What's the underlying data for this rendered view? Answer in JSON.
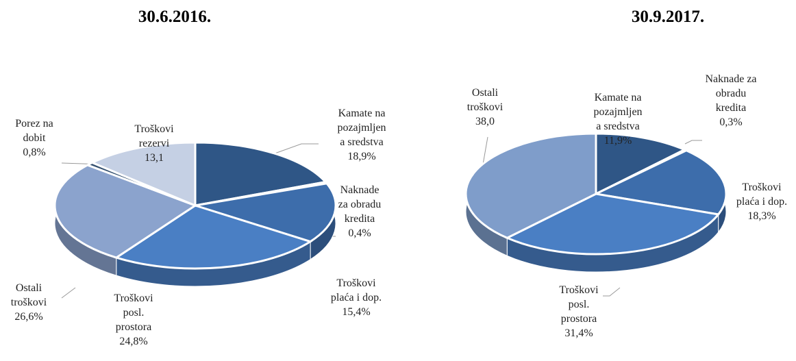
{
  "chart_data": [
    {
      "type": "pie3d",
      "title": "30.6.2016.",
      "categories": [
        "Kamate na\npozajmljen\na sredstva",
        "Naknade\nza obradu\nkredita",
        "Troškovi\nplaća i dop.",
        "Troškovi\nposl.\nprostora",
        "Ostali\ntroškovi",
        "Porez na\ndobit",
        "Troškovi\nrezervi"
      ],
      "values": [
        18.9,
        0.4,
        15.4,
        24.8,
        26.6,
        0.8,
        13.1
      ],
      "value_labels": [
        "18,9%",
        "0,4%",
        "15,4%",
        "24,8%",
        "26,6%",
        "0,8%",
        "13,1"
      ],
      "colors": [
        "#2f5686",
        "#355f94",
        "#3d6dab",
        "#4a7fc4",
        "#8ba3cd",
        "#34506f",
        "#c5d0e4"
      ]
    },
    {
      "type": "pie3d",
      "title": "30.9.2017.",
      "categories": [
        "Kamate na\npozajmljen\na sredstva",
        "Naknade za\nobradu\nkredita",
        "Troškovi\nplaća i dop.",
        "Troškovi\nposl.\nprostora",
        "Ostali\ntroškovi"
      ],
      "values": [
        11.9,
        0.3,
        18.3,
        31.4,
        38.0
      ],
      "value_labels": [
        "11,9%",
        "0,3%",
        "18,3%",
        "31,4%",
        "38,0"
      ],
      "colors": [
        "#2f5686",
        "#355f94",
        "#3d6dab",
        "#4a7fc4",
        "#7f9dca"
      ]
    }
  ]
}
